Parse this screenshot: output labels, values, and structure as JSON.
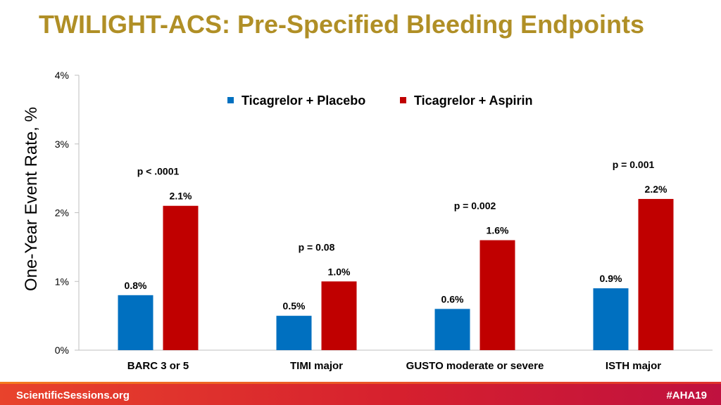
{
  "header": {
    "title": "TWILIGHT-ACS: Pre-Specified Bleeding Endpoints"
  },
  "footer": {
    "left_text": "ScientificSessions.org",
    "right_text": "#AHA19"
  },
  "chart_data": {
    "type": "bar",
    "title": "",
    "xlabel": "",
    "ylabel": "One-Year Event Rate, %",
    "ylim": [
      0,
      4
    ],
    "yticks": [
      "0%",
      "1%",
      "2%",
      "3%",
      "4%"
    ],
    "categories": [
      "BARC 3 or 5",
      "TIMI major",
      "GUSTO moderate or severe",
      "ISTH major"
    ],
    "series": [
      {
        "name": "Ticagrelor + Placebo",
        "color": "#0070C0",
        "values": [
          0.8,
          0.5,
          0.6,
          0.9
        ],
        "labels": [
          "0.8%",
          "0.5%",
          "0.6%",
          "0.9%"
        ]
      },
      {
        "name": "Ticagrelor + Aspirin",
        "color": "#C00000",
        "values": [
          2.1,
          1.0,
          1.6,
          2.2
        ],
        "labels": [
          "2.1%",
          "1.0%",
          "1.6%",
          "2.2%"
        ]
      }
    ],
    "p_values": [
      "p < .0001",
      "p = 0.08",
      "p = 0.002",
      "p = 0.001"
    ],
    "grid": false,
    "legend_position": "top-right"
  }
}
